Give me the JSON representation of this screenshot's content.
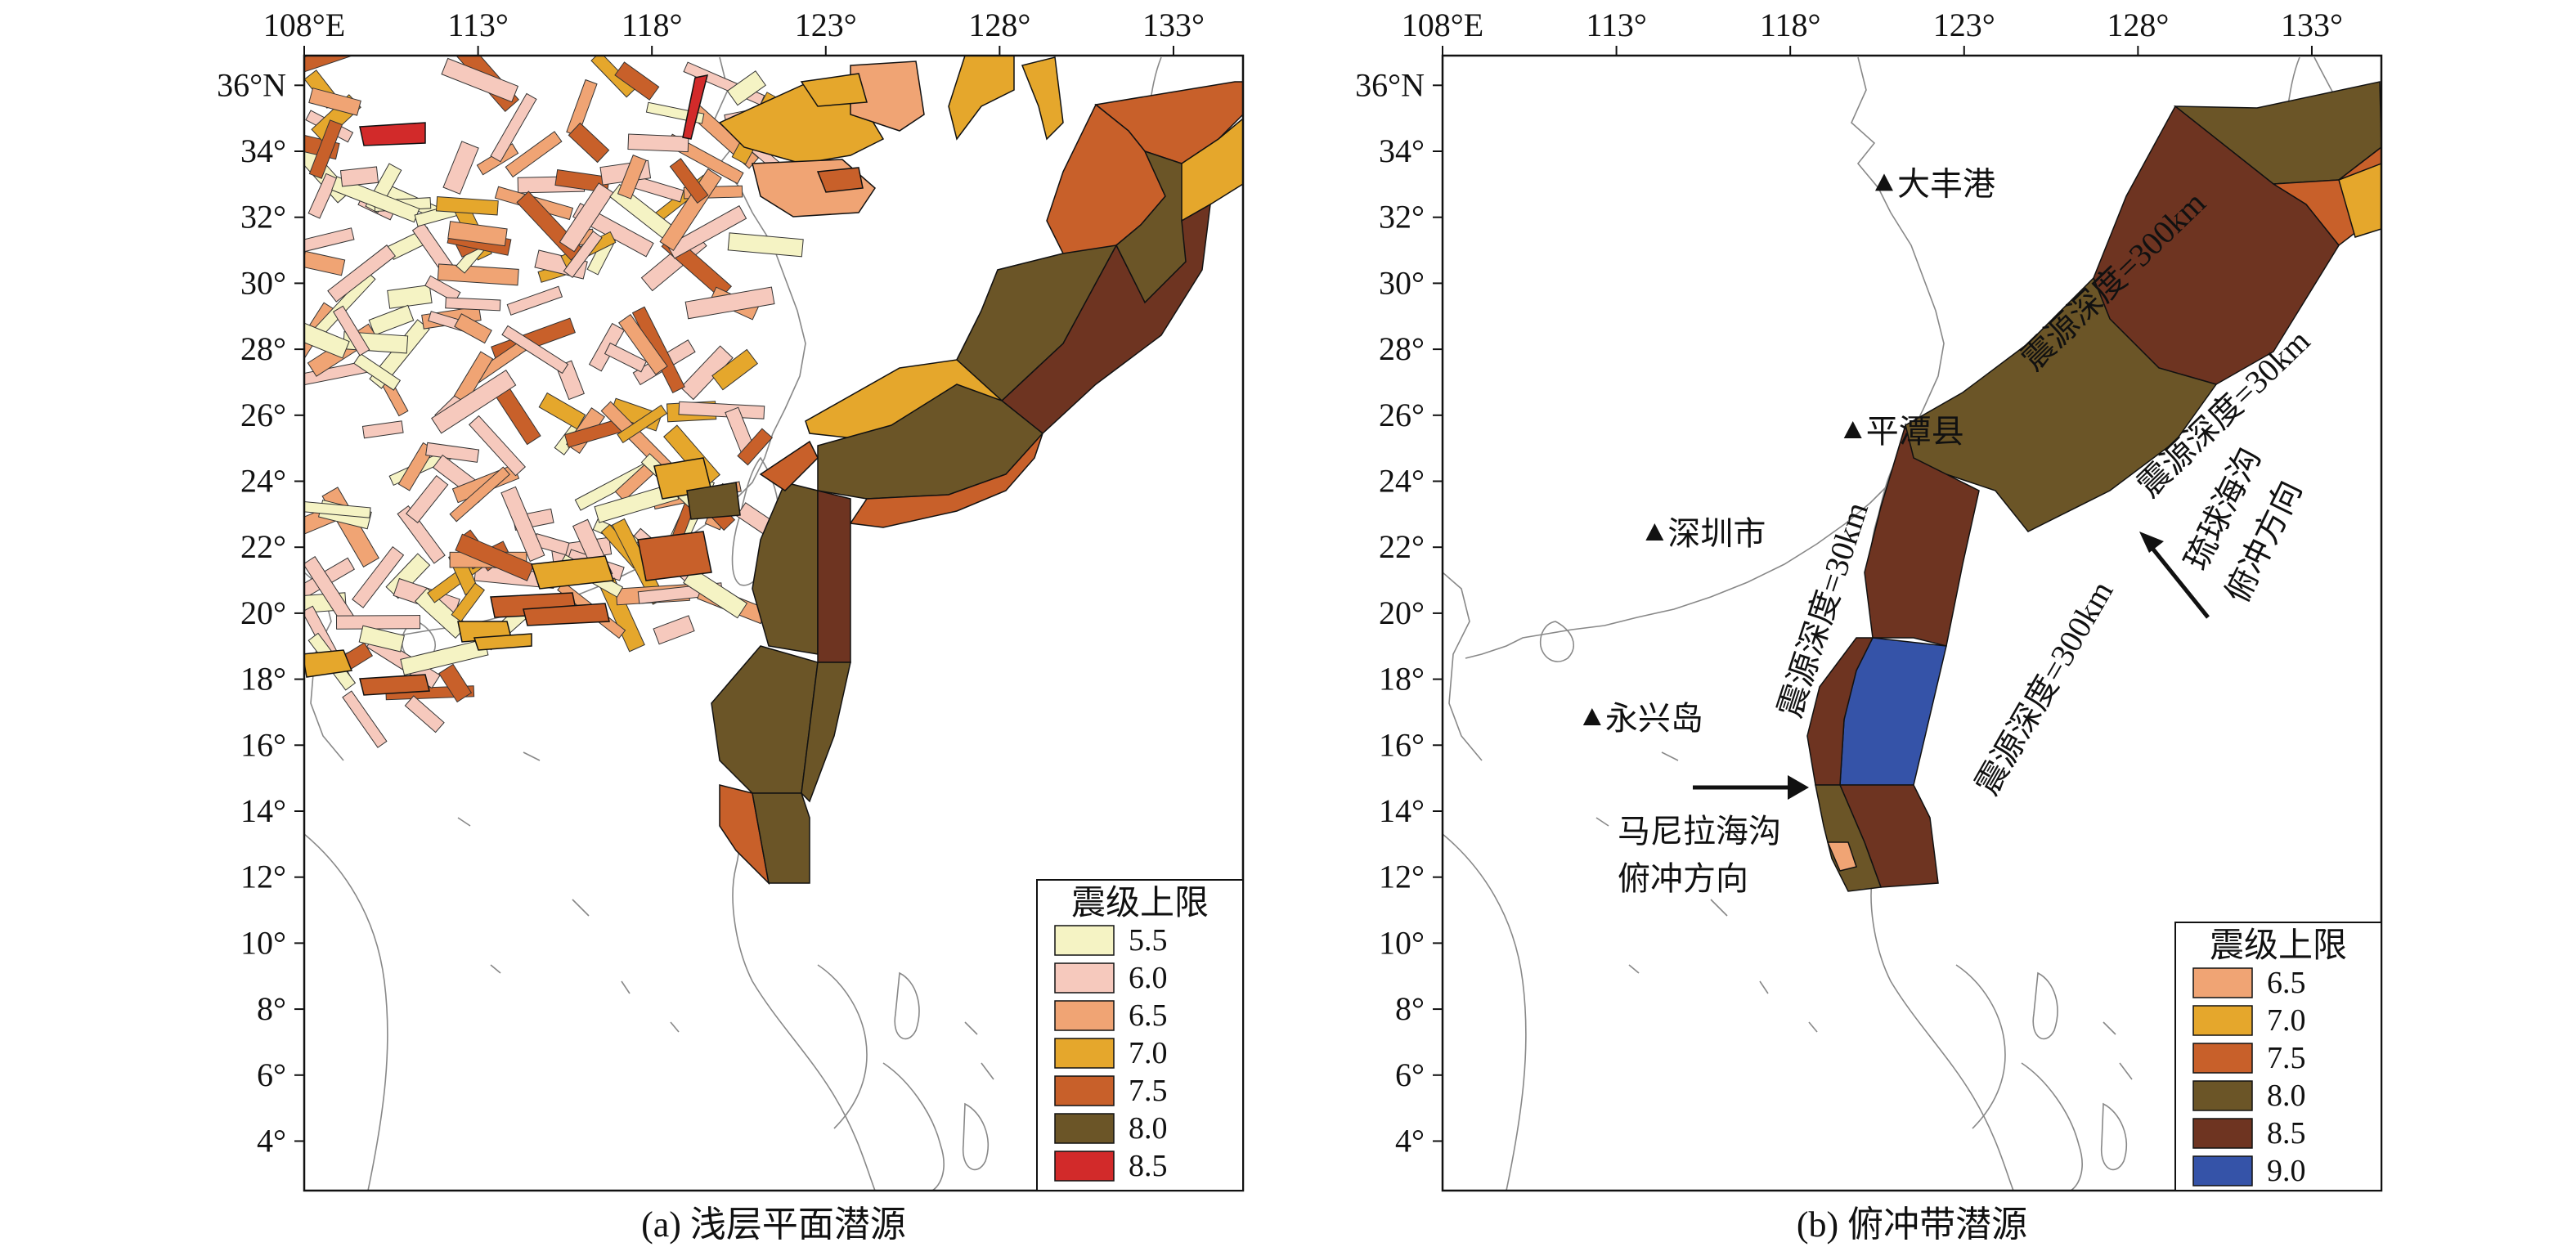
{
  "lon_ticks": [
    "108°E",
    "113°",
    "118°",
    "123°",
    "128°",
    "133°"
  ],
  "lat_ticks": [
    "36°N",
    "34°",
    "32°",
    "30°",
    "28°",
    "26°",
    "24°",
    "22°",
    "20°",
    "18°",
    "16°",
    "14°",
    "12°",
    "10°",
    "8°",
    "6°",
    "4°"
  ],
  "panel_a": {
    "caption": "(a) 浅层平面潜源",
    "legend": {
      "title": "震级上限",
      "items": [
        {
          "value": "5.5",
          "color": "#f5f3c4"
        },
        {
          "value": "6.0",
          "color": "#f6c9bd"
        },
        {
          "value": "6.5",
          "color": "#f0a474"
        },
        {
          "value": "7.0",
          "color": "#e5a72c"
        },
        {
          "value": "7.5",
          "color": "#c8602a"
        },
        {
          "value": "8.0",
          "color": "#6b5527"
        },
        {
          "value": "8.5",
          "color": "#d22a2a"
        }
      ]
    }
  },
  "panel_b": {
    "caption": "(b) 俯冲带潜源",
    "legend": {
      "title": "震级上限",
      "items": [
        {
          "value": "6.5",
          "color": "#f0a474"
        },
        {
          "value": "7.0",
          "color": "#e5a72c"
        },
        {
          "value": "7.5",
          "color": "#c8602a"
        },
        {
          "value": "8.0",
          "color": "#6b5527"
        },
        {
          "value": "8.5",
          "color": "#6e3421"
        },
        {
          "value": "9.0",
          "color": "#3553a8"
        }
      ]
    },
    "places": [
      {
        "name": "大丰港",
        "lon": 120.7,
        "lat": 33.0
      },
      {
        "name": "平潭县",
        "lon": 119.8,
        "lat": 25.5
      },
      {
        "name": "深圳市",
        "lon": 114.1,
        "lat": 22.4
      },
      {
        "name": "永兴岛",
        "lon": 112.3,
        "lat": 16.8
      }
    ],
    "annotations": {
      "depth_ryukyu_300": "震源深度=300km",
      "depth_ryukyu_30": "震源深度=30km",
      "depth_manila_30": "震源深度=30km",
      "depth_manila_300": "震源深度=300km",
      "ryukyu_direction_line1": "琉球海沟",
      "ryukyu_direction_line2": "俯冲方向",
      "manila_direction_line1": "马尼拉海沟",
      "manila_direction_line2": "俯冲方向"
    }
  }
}
